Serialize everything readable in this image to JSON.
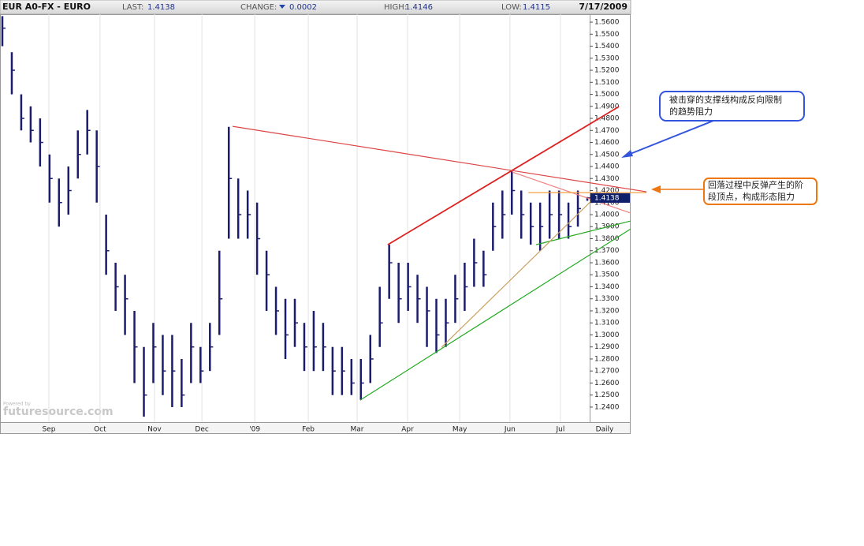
{
  "header": {
    "title": "EUR A0-FX - EURO",
    "last_label": "LAST:",
    "last": "1.4138",
    "change_label": "CHANGE:",
    "change": "0.0002",
    "high_label": "HIGH:",
    "high": "1.4146",
    "low_label": "LOW:",
    "low": "1.4115",
    "date": "7/17/2009"
  },
  "chart_data": {
    "type": "ohlc",
    "color": "#1c1c6e",
    "grid": true,
    "xlabel": "Daily",
    "x": [
      1,
      5,
      9,
      13,
      17,
      21,
      25,
      29,
      33,
      37,
      41,
      45,
      49,
      53,
      57,
      61,
      65,
      69,
      73,
      77,
      81,
      85,
      89,
      93,
      97,
      101,
      105,
      109,
      113,
      117,
      121,
      125,
      129,
      133,
      137,
      141,
      145,
      149,
      153,
      157,
      161,
      165,
      169,
      173,
      177,
      181,
      185,
      189,
      193,
      197,
      201,
      205,
      209,
      213,
      217,
      221,
      225,
      229,
      233,
      237,
      241,
      245,
      249
    ],
    "high": [
      1.565,
      1.535,
      1.5,
      1.49,
      1.48,
      1.45,
      1.43,
      1.44,
      1.47,
      1.487,
      1.47,
      1.4,
      1.36,
      1.35,
      1.32,
      1.29,
      1.31,
      1.3,
      1.3,
      1.28,
      1.31,
      1.29,
      1.31,
      1.37,
      1.473,
      1.43,
      1.42,
      1.41,
      1.37,
      1.34,
      1.33,
      1.33,
      1.31,
      1.32,
      1.31,
      1.29,
      1.29,
      1.28,
      1.28,
      1.3,
      1.34,
      1.375,
      1.36,
      1.36,
      1.35,
      1.34,
      1.33,
      1.33,
      1.35,
      1.36,
      1.38,
      1.37,
      1.41,
      1.42,
      1.436,
      1.42,
      1.41,
      1.41,
      1.42,
      1.42,
      1.41,
      1.42,
      1.4146
    ],
    "low": [
      1.54,
      1.5,
      1.47,
      1.46,
      1.44,
      1.41,
      1.39,
      1.4,
      1.43,
      1.45,
      1.41,
      1.35,
      1.32,
      1.3,
      1.26,
      1.232,
      1.26,
      1.25,
      1.24,
      1.24,
      1.26,
      1.26,
      1.27,
      1.3,
      1.38,
      1.38,
      1.38,
      1.35,
      1.32,
      1.3,
      1.28,
      1.29,
      1.27,
      1.27,
      1.27,
      1.25,
      1.25,
      1.25,
      1.246,
      1.26,
      1.29,
      1.33,
      1.31,
      1.32,
      1.31,
      1.29,
      1.285,
      1.29,
      1.31,
      1.32,
      1.34,
      1.34,
      1.37,
      1.38,
      1.4,
      1.38,
      1.375,
      1.37,
      1.38,
      1.38,
      1.38,
      1.39,
      1.4115
    ],
    "close": [
      1.555,
      1.52,
      1.48,
      1.47,
      1.46,
      1.43,
      1.41,
      1.42,
      1.45,
      1.47,
      1.44,
      1.37,
      1.34,
      1.33,
      1.29,
      1.25,
      1.29,
      1.27,
      1.27,
      1.25,
      1.29,
      1.27,
      1.29,
      1.33,
      1.43,
      1.4,
      1.4,
      1.38,
      1.35,
      1.32,
      1.3,
      1.31,
      1.29,
      1.29,
      1.29,
      1.27,
      1.27,
      1.26,
      1.26,
      1.28,
      1.31,
      1.36,
      1.33,
      1.34,
      1.33,
      1.32,
      1.3,
      1.31,
      1.33,
      1.34,
      1.36,
      1.35,
      1.39,
      1.4,
      1.42,
      1.4,
      1.39,
      1.39,
      1.4,
      1.4,
      1.39,
      1.405,
      1.4138
    ],
    "xlim": [
      0,
      250
    ],
    "xticks": [
      {
        "value": 20.7,
        "label": "Sep"
      },
      {
        "value": 42.4,
        "label": "Oct"
      },
      {
        "value": 65.5,
        "label": "Nov"
      },
      {
        "value": 85.6,
        "label": "Dec"
      },
      {
        "value": 108,
        "label": "'09"
      },
      {
        "value": 130.7,
        "label": "Feb"
      },
      {
        "value": 151.4,
        "label": "Mar"
      },
      {
        "value": 172.8,
        "label": "Apr"
      },
      {
        "value": 194.9,
        "label": "May"
      },
      {
        "value": 216.2,
        "label": "Jun"
      },
      {
        "value": 237.6,
        "label": "Jul"
      }
    ],
    "ylim": [
      1.2275,
      1.5666
    ],
    "yticks": [
      {
        "value": 1.24,
        "label": "1.2400"
      },
      {
        "value": 1.25,
        "label": "1.2500"
      },
      {
        "value": 1.26,
        "label": "1.2600"
      },
      {
        "value": 1.27,
        "label": "1.2700"
      },
      {
        "value": 1.28,
        "label": "1.2800"
      },
      {
        "value": 1.29,
        "label": "1.2900"
      },
      {
        "value": 1.3,
        "label": "1.3000"
      },
      {
        "value": 1.31,
        "label": "1.3100"
      },
      {
        "value": 1.32,
        "label": "1.3200"
      },
      {
        "value": 1.33,
        "label": "1.3300"
      },
      {
        "value": 1.34,
        "label": "1.3400"
      },
      {
        "value": 1.35,
        "label": "1.3500"
      },
      {
        "value": 1.36,
        "label": "1.3600"
      },
      {
        "value": 1.37,
        "label": "1.3700"
      },
      {
        "value": 1.38,
        "label": "1.3800"
      },
      {
        "value": 1.39,
        "label": "1.3900"
      },
      {
        "value": 1.4,
        "label": "1.4000"
      },
      {
        "value": 1.41,
        "label": "1.4100"
      },
      {
        "value": 1.42,
        "label": "1.4200"
      },
      {
        "value": 1.43,
        "label": "1.4300"
      },
      {
        "value": 1.44,
        "label": "1.4400"
      },
      {
        "value": 1.45,
        "label": "1.4500"
      },
      {
        "value": 1.46,
        "label": "1.4600"
      },
      {
        "value": 1.47,
        "label": "1.4700"
      },
      {
        "value": 1.48,
        "label": "1.4800"
      },
      {
        "value": 1.49,
        "label": "1.4900"
      },
      {
        "value": 1.5,
        "label": "1.5000"
      },
      {
        "value": 1.51,
        "label": "1.5100"
      },
      {
        "value": 1.52,
        "label": "1.5200"
      },
      {
        "value": 1.53,
        "label": "1.5300"
      },
      {
        "value": 1.54,
        "label": "1.5400"
      },
      {
        "value": 1.55,
        "label": "1.5500"
      },
      {
        "value": 1.56,
        "label": "1.5600"
      }
    ],
    "last_price": {
      "value": 1.4138,
      "label": "1.4138"
    },
    "trendlines": [
      {
        "color": "#dd2222",
        "x": [
          164.4,
          262.4
        ],
        "y": [
          1.375,
          1.4898
        ]
      },
      {
        "color": "#dd4444",
        "x": [
          98.6,
          274.1
        ],
        "y": [
          1.4734,
          1.419
        ]
      },
      {
        "color": "#22aa22",
        "x": [
          152.7,
          267.4
        ],
        "y": [
          1.2458,
          1.3881
        ]
      },
      {
        "color": "#22aa22",
        "x": [
          227.3,
          267.4
        ],
        "y": [
          1.375,
          1.3947
        ]
      },
      {
        "color": "#c8a060",
        "x": [
          187.2,
          254
        ],
        "y": [
          1.2897,
          1.4177
        ]
      },
      {
        "color": "#f08080",
        "x": [
          217.2,
          267.4
        ],
        "y": [
          1.4354,
          1.4013
        ]
      },
      {
        "color": "#f5a040",
        "x": [
          224,
          274.1
        ],
        "y": [
          1.4183,
          1.4183
        ]
      }
    ]
  },
  "watermark": {
    "small": "Powered by",
    "text": "futuresource.com"
  },
  "annotations": [
    {
      "lines": [
        "被击穿的支撑线构成反向限制",
        "的趋势阻力"
      ],
      "color": "#3355dd"
    },
    {
      "lines": [
        "回落过程中反弹产生的阶",
        "段顶点，构成形态阻力"
      ],
      "color": "#ee7711"
    }
  ]
}
